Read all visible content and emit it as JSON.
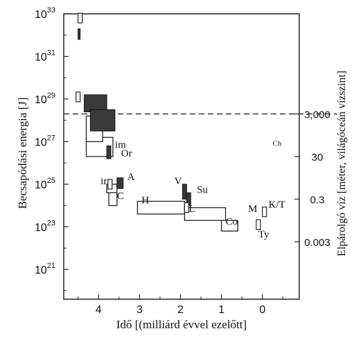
{
  "chart_data": {
    "type": "chart",
    "xlabel": "Idő [(milliárd évvel ezelőtt]",
    "ylabel_left": "Becsapódási energia [J]",
    "ylabel_right": "Elpárolgó víz [méter, világóceán vízszint]",
    "x_ticks": [
      "4",
      "3",
      "2",
      "1",
      "0"
    ],
    "x_tick_values": [
      4,
      3,
      2,
      1,
      0
    ],
    "xlim": [
      4.85,
      -0.9
    ],
    "y_ticks_left": [
      {
        "base": "10",
        "exp": "33",
        "value": 33
      },
      {
        "base": "10",
        "exp": "31",
        "value": 31
      },
      {
        "base": "10",
        "exp": "29",
        "value": 29
      },
      {
        "base": "10",
        "exp": "27",
        "value": 27
      },
      {
        "base": "10",
        "exp": "25",
        "value": 25
      },
      {
        "base": "10",
        "exp": "23",
        "value": 23
      },
      {
        "base": "10",
        "exp": "21",
        "value": 21
      }
    ],
    "ylim_log10": [
      19.6,
      33
    ],
    "y_ticks_right": [
      {
        "label": "3,000",
        "log10_energy": 28.3
      },
      {
        "label": "30",
        "log10_energy": 26.3
      },
      {
        "label": "0.3",
        "log10_energy": 24.3
      },
      {
        "label": "0.003",
        "log10_energy": 22.3
      }
    ],
    "threshold_line": {
      "log10_energy": 28.3,
      "style": "dashed"
    },
    "open_boxes": [
      {
        "t_min": 3.65,
        "t_max": 4.3,
        "e_min": 26.3,
        "e_max": 27.2
      },
      {
        "t_min": 3.9,
        "t_max": 4.3,
        "e_min": 27.0,
        "e_max": 28.2
      },
      {
        "t_min": 3.55,
        "t_max": 3.75,
        "e_min": 24.0,
        "e_max": 24.7
      },
      {
        "t_min": 3.55,
        "t_max": 3.8,
        "e_min": 24.6,
        "e_max": 25.0
      },
      {
        "t_min": 1.9,
        "t_max": 3.05,
        "e_min": 23.6,
        "e_max": 24.2
      },
      {
        "t_min": 0.9,
        "t_max": 1.9,
        "e_min": 23.3,
        "e_max": 23.9
      },
      {
        "t_min": 0.6,
        "t_max": 1.0,
        "e_min": 22.8,
        "e_max": 23.3
      }
    ],
    "filled_boxes": [
      {
        "t_min": 4.45,
        "t_max": 4.5,
        "e_min": 31.8,
        "e_max": 32.3
      },
      {
        "t_min": 3.8,
        "t_max": 4.35,
        "e_min": 28.4,
        "e_max": 29.2
      },
      {
        "t_min": 3.6,
        "t_max": 4.2,
        "e_min": 27.5,
        "e_max": 28.5
      },
      {
        "t_min": 3.7,
        "t_max": 3.8,
        "e_min": 26.2,
        "e_max": 26.8
      },
      {
        "t_min": 3.4,
        "t_max": 3.55,
        "e_min": 24.8,
        "e_max": 25.3
      },
      {
        "t_min": 1.85,
        "t_max": 1.95,
        "e_min": 24.3,
        "e_max": 25.0
      },
      {
        "t_min": 1.75,
        "t_max": 1.85,
        "e_min": 24.0,
        "e_max": 24.6
      }
    ],
    "outline_marks": [
      {
        "t": 4.45,
        "e": 32.8
      },
      {
        "t": 4.5,
        "e": 29.1
      },
      {
        "t": 3.72,
        "e": 25.0
      },
      {
        "t": 1.85,
        "e": 23.9
      },
      {
        "t": 0.1,
        "e": 23.1
      },
      {
        "t": -0.05,
        "e": 23.7
      }
    ],
    "labels": [
      {
        "text": "im",
        "t": 3.6,
        "e": 26.7
      },
      {
        "text": "Or",
        "t": 3.45,
        "e": 26.3
      },
      {
        "text": "ir",
        "t": 3.95,
        "e": 25.0
      },
      {
        "text": "A",
        "t": 3.3,
        "e": 25.2
      },
      {
        "text": "C",
        "t": 3.55,
        "e": 24.3
      },
      {
        "text": "H",
        "t": 2.95,
        "e": 24.1
      },
      {
        "text": "V",
        "t": 2.15,
        "e": 25.0
      },
      {
        "text": "Su",
        "t": 1.6,
        "e": 24.6
      },
      {
        "text": "L",
        "t": 1.8,
        "e": 23.7
      },
      {
        "text": "Co",
        "t": 0.9,
        "e": 23.1
      },
      {
        "text": "M",
        "t": 0.35,
        "e": 23.7
      },
      {
        "text": "K/T",
        "t": -0.15,
        "e": 23.9
      },
      {
        "text": "Ty",
        "t": 0.1,
        "e": 22.5
      },
      {
        "text": "Ch",
        "t": -0.25,
        "e": 26.8
      }
    ]
  }
}
